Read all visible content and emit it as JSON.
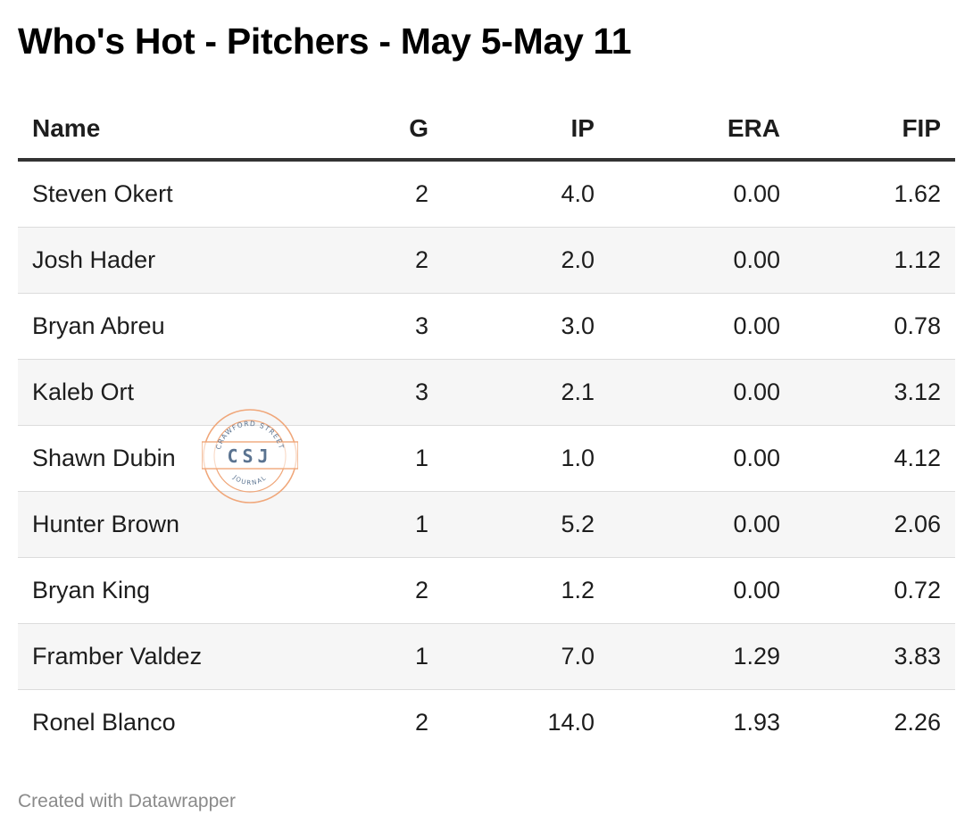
{
  "title": "Who's Hot - Pitchers - May 5-May 11",
  "chart_data": {
    "type": "table",
    "title": "Who's Hot - Pitchers - May 5-May 11",
    "columns": [
      "Name",
      "G",
      "IP",
      "ERA",
      "FIP"
    ],
    "rows": [
      [
        "Steven Okert",
        "2",
        "4.0",
        "0.00",
        "1.62"
      ],
      [
        "Josh Hader",
        "2",
        "2.0",
        "0.00",
        "1.12"
      ],
      [
        "Bryan Abreu",
        "3",
        "3.0",
        "0.00",
        "0.78"
      ],
      [
        "Kaleb Ort",
        "3",
        "2.1",
        "0.00",
        "3.12"
      ],
      [
        "Shawn Dubin",
        "1",
        "1.0",
        "0.00",
        "4.12"
      ],
      [
        "Hunter Brown",
        "1",
        "5.2",
        "0.00",
        "2.06"
      ],
      [
        "Bryan King",
        "2",
        "1.2",
        "0.00",
        "0.72"
      ],
      [
        "Framber Valdez",
        "1",
        "7.0",
        "1.29",
        "3.83"
      ],
      [
        "Ronel Blanco",
        "2",
        "14.0",
        "1.93",
        "2.26"
      ]
    ]
  },
  "watermark": {
    "top_text": "CRAWFORD STREET",
    "initials": "CSJ",
    "bottom_text": "JOURNAL",
    "ring_color": "#f0a77a",
    "text_color": "#5a7390"
  },
  "footer": "Created with Datawrapper",
  "colors": {
    "header_rule": "#333333",
    "row_alt": "#f6f6f6",
    "row_divider": "#dcdcdc",
    "footer_text": "#8a8a8a"
  }
}
